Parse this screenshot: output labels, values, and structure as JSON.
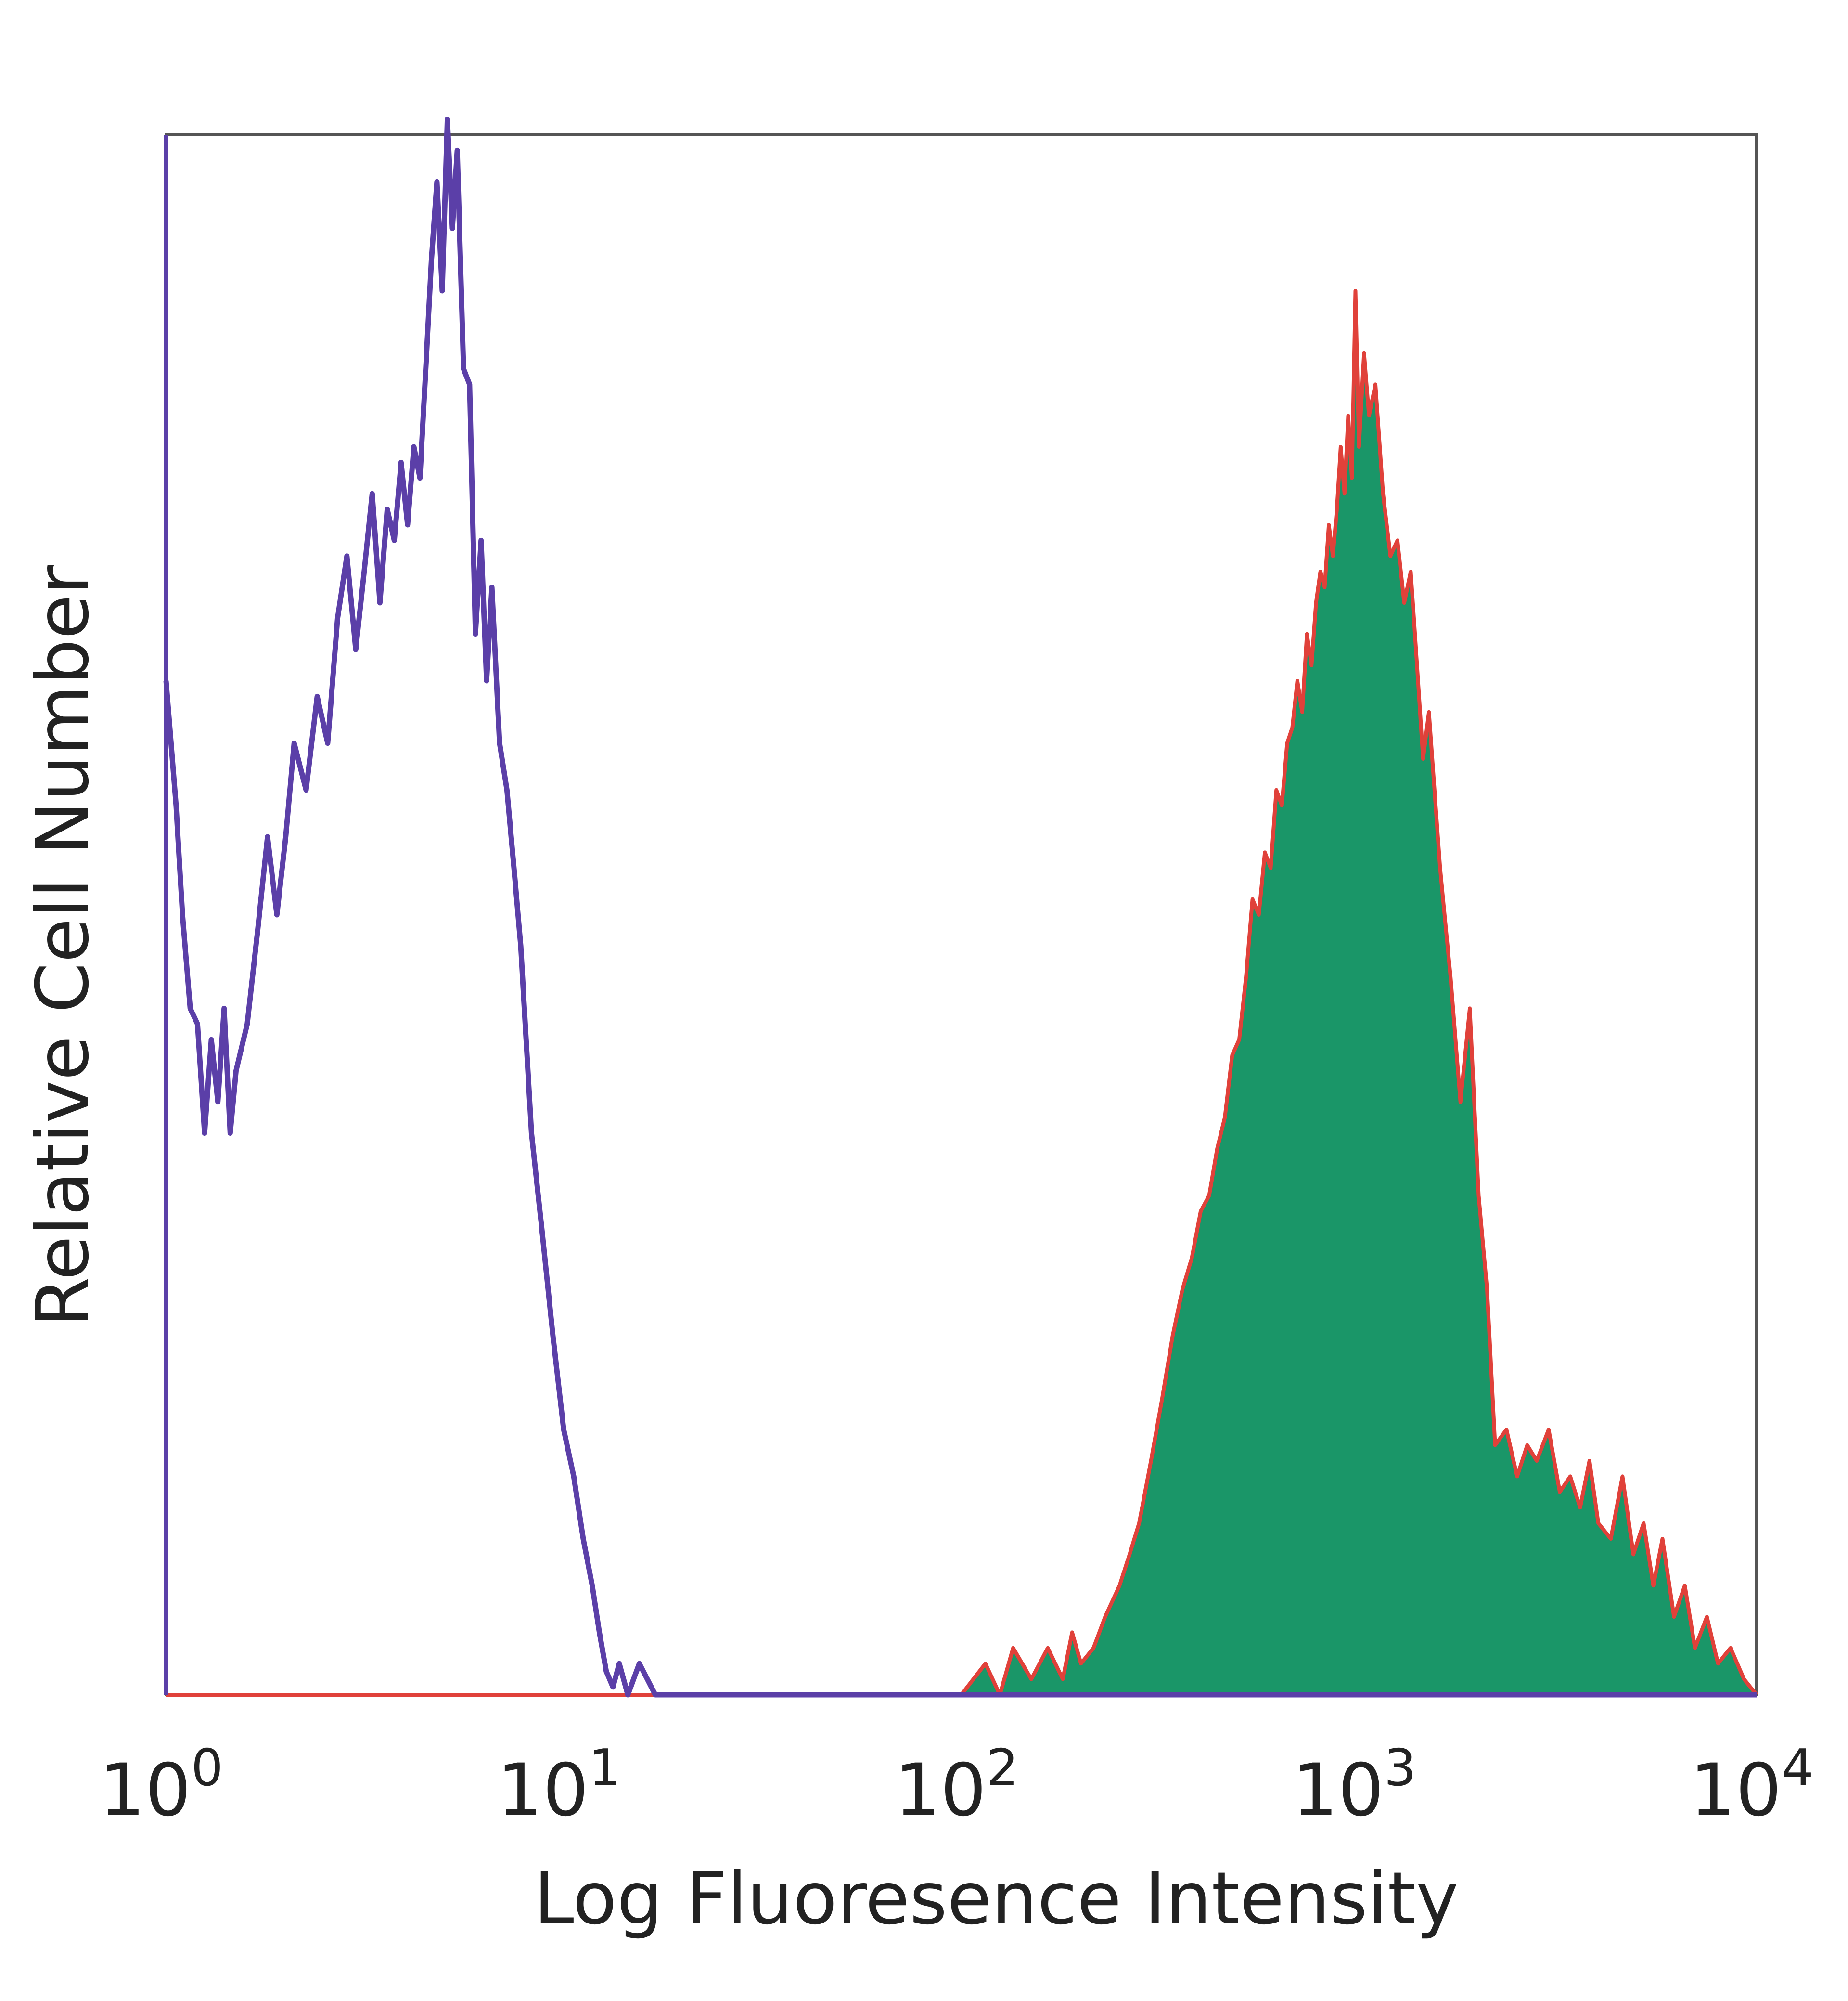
{
  "chart_data": {
    "type": "area",
    "title": "",
    "xlabel": "Log Fluoresence Intensity",
    "ylabel": "Relative Cell Number",
    "x_scale": "log",
    "xlim": [
      1,
      10000
    ],
    "ylim": [
      0,
      100
    ],
    "grid": false,
    "legend": "none",
    "x_ticks": [
      {
        "base": "10",
        "exp": "0"
      },
      {
        "base": "10",
        "exp": "1"
      },
      {
        "base": "10",
        "exp": "2"
      },
      {
        "base": "10",
        "exp": "3"
      },
      {
        "base": "10",
        "exp": "4"
      }
    ],
    "colors": {
      "isotype": "#5b3fa8",
      "stained_fill": "#1a9668",
      "stained_outline": "#e0413a",
      "axes": "#555555"
    },
    "series": [
      {
        "style": "outline",
        "x": [
          1.0,
          1.06,
          1.1,
          1.15,
          1.2,
          1.25,
          1.3,
          1.35,
          1.4,
          1.45,
          1.5,
          1.6,
          1.7,
          1.8,
          1.9,
          2.0,
          2.1,
          2.25,
          2.4,
          2.55,
          2.7,
          2.85,
          3.0,
          3.15,
          3.3,
          3.45,
          3.6,
          3.75,
          3.9,
          4.05,
          4.2,
          4.35,
          4.5,
          4.65,
          4.8,
          4.95,
          5.1,
          5.25,
          5.4,
          5.6,
          5.8,
          6.0,
          6.2,
          6.4,
          6.6,
          6.9,
          7.2,
          7.5,
          7.8,
          8.3,
          8.8,
          9.4,
          10.0,
          10.6,
          11.2,
          11.8,
          12.3,
          12.8,
          13.3,
          13.8,
          14.5,
          15.5,
          17.0,
          20.0,
          30.0,
          50.0,
          100.0,
          10000.0
        ],
        "y": [
          65,
          57,
          50,
          44,
          43,
          36,
          42,
          38,
          44,
          36,
          40,
          43,
          49,
          55,
          50,
          55,
          61,
          58,
          64,
          61,
          69,
          73,
          67,
          72,
          77,
          70,
          76,
          74,
          79,
          75,
          80,
          78,
          85,
          92,
          97,
          90,
          101,
          94,
          99,
          85,
          84,
          68,
          74,
          65,
          71,
          61,
          58,
          53,
          48,
          36,
          30,
          23,
          17,
          14,
          10,
          7,
          4,
          1.5,
          0.5,
          2,
          0,
          2,
          0,
          0,
          0,
          0,
          0,
          0
        ]
      },
      {
        "style": "filled",
        "x": [
          1.0,
          50.0,
          100.0,
          115.0,
          125.0,
          135.0,
          150.0,
          165.0,
          180.0,
          190.0,
          200.0,
          215.0,
          230.0,
          250.0,
          265.0,
          280.0,
          300.0,
          320.0,
          340.0,
          360.0,
          380.0,
          400.0,
          420.0,
          440.0,
          460.0,
          480.0,
          500.0,
          520.0,
          540.0,
          560.0,
          580.0,
          600.0,
          620.0,
          640.0,
          660.0,
          680.0,
          700.0,
          720.0,
          740.0,
          760.0,
          780.0,
          800.0,
          820.0,
          840.0,
          860.0,
          880.0,
          900.0,
          920.0,
          940.0,
          960.0,
          980.0,
          1000.0,
          1030.0,
          1060.0,
          1100.0,
          1150.0,
          1200.0,
          1250.0,
          1300.0,
          1350.0,
          1400.0,
          1450.0,
          1500.0,
          1600.0,
          1700.0,
          1800.0,
          1900.0,
          2000.0,
          2100.0,
          2200.0,
          2350.0,
          2500.0,
          2650.0,
          2800.0,
          3000.0,
          3200.0,
          3400.0,
          3600.0,
          3800.0,
          4000.0,
          4300.0,
          4600.0,
          4900.0,
          5200.0,
          5500.0,
          5800.0,
          6200.0,
          6600.0,
          7000.0,
          7500.0,
          8000.0,
          8600.0,
          9300.0,
          10000.0
        ],
        "y": [
          0,
          0,
          0,
          2,
          0,
          3,
          1,
          3,
          1,
          4,
          2,
          3,
          5,
          7,
          9,
          11,
          15,
          19,
          23,
          26,
          28,
          31,
          32,
          35,
          37,
          41,
          42,
          46,
          51,
          50,
          54,
          53,
          58,
          57,
          61,
          62,
          65,
          63,
          68,
          66,
          70,
          72,
          71,
          75,
          73,
          76,
          80,
          77,
          82,
          78,
          90,
          80,
          86,
          82,
          84,
          77,
          73,
          74,
          70,
          72,
          66,
          60,
          63,
          53,
          46,
          38,
          44,
          32,
          26,
          16,
          17,
          14,
          16,
          15,
          17,
          13,
          14,
          12,
          15,
          11,
          10,
          14,
          9,
          11,
          7,
          10,
          5,
          7,
          3,
          5,
          2,
          3,
          1,
          0
        ]
      }
    ]
  }
}
